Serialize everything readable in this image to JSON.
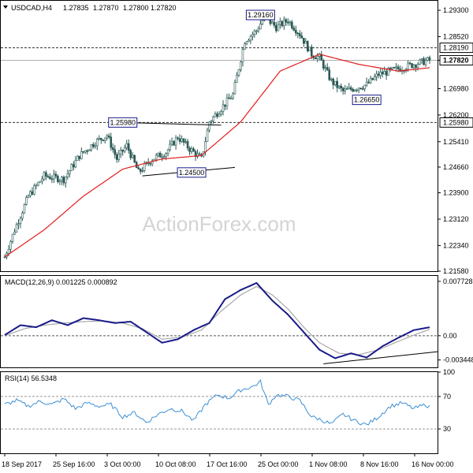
{
  "chart_data": [
    {
      "type": "candlestick",
      "title": "USDCAD,H4",
      "ohlc": [
        "1.27835",
        "1.27870",
        "1.27800",
        "1.27820"
      ],
      "watermark": "ActionForex.com",
      "ylim": [
        1.2158,
        1.2958
      ],
      "y_ticks": [
        "1.29300",
        "1.28520",
        "1.27820",
        "1.26980",
        "1.26200",
        "1.25410",
        "1.24660",
        "1.23900",
        "1.23120",
        "1.22340",
        "1.21580"
      ],
      "x_ticks": [
        "18 Sep 2017",
        "25 Sep 16:00",
        "3 Oct 00:00",
        "10 Oct 08:00",
        "17 Oct 16:00",
        "25 Oct 00:00",
        "1 Nov 08:00",
        "8 Nov 16:00",
        "16 Nov 00:00"
      ],
      "price_anchors": [
        [
          0,
          1.22
        ],
        [
          5,
          1.228
        ],
        [
          12,
          1.238
        ],
        [
          20,
          1.244
        ],
        [
          30,
          1.243
        ],
        [
          38,
          1.25
        ],
        [
          46,
          1.254
        ],
        [
          52,
          1.256
        ],
        [
          57,
          1.249
        ],
        [
          62,
          1.253
        ],
        [
          68,
          1.245
        ],
        [
          75,
          1.249
        ],
        [
          82,
          1.251
        ],
        [
          88,
          1.2555
        ],
        [
          94,
          1.252
        ],
        [
          100,
          1.249
        ],
        [
          104,
          1.26
        ],
        [
          110,
          1.264
        ],
        [
          116,
          1.268
        ],
        [
          122,
          1.284
        ],
        [
          128,
          1.287
        ],
        [
          132,
          1.291
        ],
        [
          138,
          1.288
        ],
        [
          144,
          1.29
        ],
        [
          150,
          1.286
        ],
        [
          156,
          1.28
        ],
        [
          160,
          1.279
        ],
        [
          166,
          1.272
        ],
        [
          172,
          1.269
        ],
        [
          178,
          1.27
        ],
        [
          184,
          1.271
        ],
        [
          190,
          1.274
        ],
        [
          196,
          1.275
        ],
        [
          202,
          1.276
        ],
        [
          208,
          1.277
        ],
        [
          214,
          1.278
        ],
        [
          216,
          1.2782
        ]
      ],
      "sma_anchors": [
        [
          0,
          1.22
        ],
        [
          20,
          1.228
        ],
        [
          40,
          1.238
        ],
        [
          60,
          1.246
        ],
        [
          80,
          1.249
        ],
        [
          100,
          1.25
        ],
        [
          120,
          1.26
        ],
        [
          140,
          1.275
        ],
        [
          160,
          1.28
        ],
        [
          180,
          1.277
        ],
        [
          200,
          1.275
        ],
        [
          216,
          1.276
        ]
      ],
      "levels": [
        {
          "value": 1.2819,
          "label": "1.28190"
        },
        {
          "value": 1.2598,
          "label": "1.25980"
        }
      ],
      "current": {
        "value": 1.2782,
        "label": "1.27820"
      },
      "annotations": [
        {
          "value": 1.2916,
          "label": "1.29160",
          "bar": 130
        },
        {
          "value": 1.2598,
          "label": "1.25980",
          "bar": 60
        },
        {
          "value": 1.245,
          "label": "1.24500",
          "bar": 95
        },
        {
          "value": 1.2665,
          "label": "1.26650",
          "bar": 184
        }
      ],
      "trendlines": [
        {
          "from": [
            60,
            1.2598
          ],
          "to": [
            110,
            1.259
          ]
        },
        {
          "from": [
            70,
            1.244
          ],
          "to": [
            117,
            1.2465
          ]
        }
      ],
      "colors": {
        "candle": "#2a5a55",
        "sma": "#e41b1b",
        "level": "#303030"
      }
    },
    {
      "type": "line",
      "title": "MACD(12,26,9) 0.001225 0.000892",
      "ylim": [
        -0.0045,
        0.0085
      ],
      "y_ticks": [
        "0.007728",
        "0.00",
        "-0.003448"
      ],
      "series": [
        {
          "name": "MACD",
          "color": "#1a1a8a",
          "anchors": [
            [
              0,
              0.0001
            ],
            [
              8,
              0.0015
            ],
            [
              16,
              0.0012
            ],
            [
              24,
              0.0022
            ],
            [
              32,
              0.0015
            ],
            [
              40,
              0.0025
            ],
            [
              48,
              0.0022
            ],
            [
              56,
              0.0018
            ],
            [
              64,
              0.002
            ],
            [
              72,
              0.0005
            ],
            [
              80,
              -0.001
            ],
            [
              88,
              -0.0005
            ],
            [
              96,
              0.0008
            ],
            [
              104,
              0.0018
            ],
            [
              112,
              0.0052
            ],
            [
              120,
              0.0065
            ],
            [
              128,
              0.0075
            ],
            [
              136,
              0.005
            ],
            [
              144,
              0.003
            ],
            [
              152,
              0.0005
            ],
            [
              160,
              -0.002
            ],
            [
              168,
              -0.0032
            ],
            [
              176,
              -0.0025
            ],
            [
              184,
              -0.0031
            ],
            [
              192,
              -0.0015
            ],
            [
              200,
              -0.0003
            ],
            [
              208,
              0.0008
            ],
            [
              216,
              0.0012
            ]
          ]
        },
        {
          "name": "Signal",
          "color": "#a8a8a8",
          "anchors": [
            [
              0,
              0.0
            ],
            [
              10,
              0.001
            ],
            [
              20,
              0.0015
            ],
            [
              30,
              0.0018
            ],
            [
              40,
              0.002
            ],
            [
              50,
              0.0021
            ],
            [
              60,
              0.0018
            ],
            [
              70,
              0.001
            ],
            [
              80,
              -0.0005
            ],
            [
              90,
              -0.0002
            ],
            [
              100,
              0.0008
            ],
            [
              110,
              0.0035
            ],
            [
              120,
              0.0058
            ],
            [
              128,
              0.007
            ],
            [
              136,
              0.0058
            ],
            [
              144,
              0.0038
            ],
            [
              152,
              0.0012
            ],
            [
              160,
              -0.001
            ],
            [
              170,
              -0.0025
            ],
            [
              180,
              -0.0027
            ],
            [
              190,
              -0.002
            ],
            [
              200,
              -0.0008
            ],
            [
              210,
              0.0003
            ],
            [
              216,
              0.0009
            ]
          ]
        }
      ],
      "trendlines": [
        {
          "from": [
            162,
            -0.004
          ],
          "to": [
            216,
            -0.0025
          ]
        }
      ],
      "zero_line": 0
    },
    {
      "type": "line",
      "title": "RSI(14) 56.5348",
      "ylim": [
        0,
        100
      ],
      "y_ticks": [
        "100",
        "70",
        "30",
        "0"
      ],
      "levels": [
        70,
        30
      ],
      "series": [
        {
          "name": "RSI",
          "color": "#3c8fd4",
          "anchors": [
            [
              0,
              60
            ],
            [
              6,
              65
            ],
            [
              12,
              58
            ],
            [
              18,
              64
            ],
            [
              24,
              60
            ],
            [
              30,
              67
            ],
            [
              36,
              55
            ],
            [
              42,
              62
            ],
            [
              48,
              58
            ],
            [
              54,
              60
            ],
            [
              60,
              45
            ],
            [
              66,
              50
            ],
            [
              72,
              38
            ],
            [
              78,
              48
            ],
            [
              84,
              55
            ],
            [
              90,
              52
            ],
            [
              96,
              40
            ],
            [
              102,
              60
            ],
            [
              108,
              72
            ],
            [
              114,
              68
            ],
            [
              120,
              78
            ],
            [
              126,
              82
            ],
            [
              130,
              88
            ],
            [
              134,
              60
            ],
            [
              138,
              72
            ],
            [
              144,
              70
            ],
            [
              150,
              65
            ],
            [
              156,
              45
            ],
            [
              160,
              42
            ],
            [
              166,
              36
            ],
            [
              172,
              48
            ],
            [
              178,
              40
            ],
            [
              184,
              35
            ],
            [
              190,
              45
            ],
            [
              196,
              58
            ],
            [
              202,
              62
            ],
            [
              208,
              55
            ],
            [
              214,
              60
            ],
            [
              216,
              57
            ]
          ]
        }
      ]
    }
  ]
}
